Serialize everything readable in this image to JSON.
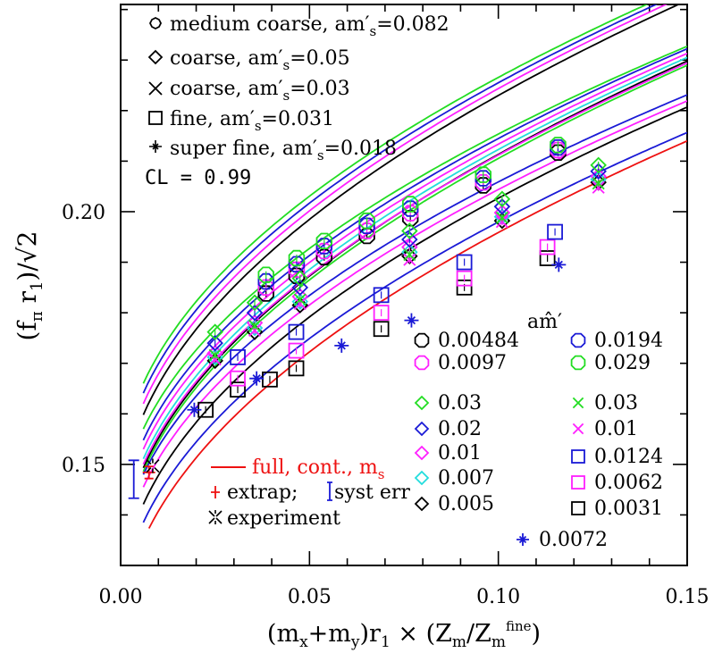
{
  "chart_data": {
    "type": "scatter",
    "xlim": [
      0.0,
      0.15
    ],
    "ylim": [
      0.13,
      0.241
    ],
    "xticks": [
      0.0,
      0.05,
      0.1,
      0.15
    ],
    "xtick_labels": [
      "0.00",
      "0.05",
      "0.10",
      "0.15"
    ],
    "yticks": [
      0.15,
      0.2
    ],
    "ytick_labels": [
      "0.15",
      "0.20"
    ],
    "grid": false,
    "xlabel": "(m_x+m_y)r_1 × (Z_m/Z_m^fine)",
    "ylabel": "(f_π r_1)/√2",
    "annotations": {
      "cl": "CL = 0.99",
      "ahat_header": "am̂′"
    },
    "ensemble_legend": [
      {
        "label": "medium coarse, am′s=0.082",
        "symbol": "octagon"
      },
      {
        "label": "coarse, am′s=0.05",
        "symbol": "diamond"
      },
      {
        "label": "coarse, am′s=0.03",
        "symbol": "x"
      },
      {
        "label": "fine, am′s=0.031",
        "symbol": "square"
      },
      {
        "label": "super fine, am′s=0.018",
        "symbol": "fancyplus"
      }
    ],
    "mass_legend": [
      {
        "label": "0.00484",
        "symbol": "octagon",
        "color": "#000000"
      },
      {
        "label": "0.0194",
        "symbol": "octagon",
        "color": "#1a1ad6"
      },
      {
        "label": "0.0097",
        "symbol": "octagon",
        "color": "#ff1fff"
      },
      {
        "label": "0.029",
        "symbol": "octagon",
        "color": "#22dd22"
      },
      {
        "label": "0.03",
        "symbol": "diamond",
        "color": "#22dd22"
      },
      {
        "label": "0.03",
        "symbol": "x",
        "color": "#22dd22"
      },
      {
        "label": "0.02",
        "symbol": "diamond",
        "color": "#1a1ad6"
      },
      {
        "label": "0.01",
        "symbol": "x",
        "color": "#ff1fff"
      },
      {
        "label": "0.01",
        "symbol": "diamond",
        "color": "#ff1fff"
      },
      {
        "label": "0.0124",
        "symbol": "square",
        "color": "#1a1ad6"
      },
      {
        "label": "0.007",
        "symbol": "diamond",
        "color": "#22dddd"
      },
      {
        "label": "0.0062",
        "symbol": "square",
        "color": "#ff1fff"
      },
      {
        "label": "0.005",
        "symbol": "diamond",
        "color": "#000000"
      },
      {
        "label": "0.0031",
        "symbol": "square",
        "color": "#000000"
      },
      {
        "label": "0.0072",
        "symbol": "fancyplus",
        "color": "#1a1ad6"
      }
    ],
    "extra_legend": [
      {
        "label": "full, cont., m_s",
        "symbol": "line",
        "color": "#ee1111"
      },
      {
        "label": "extrap; syst err",
        "symbol": "errbar",
        "color": "#ee1111"
      },
      {
        "label": "experiment",
        "symbol": "burst",
        "color": "#000000"
      }
    ],
    "extrapolation": {
      "x": 0.0075,
      "y": 0.1484,
      "yerr_stat": 0.0012,
      "yerr_syst": [
        0.1433,
        0.1508
      ]
    },
    "experiment": {
      "x": 0.0085,
      "y": 0.1497
    },
    "series": [
      {
        "ensemble": "medium coarse",
        "mass": "0.00484",
        "symbol": "octagon",
        "color": "#000000",
        "points": [
          [
            0.0385,
            0.1838
          ],
          [
            0.0466,
            0.1873
          ],
          [
            0.0539,
            0.191
          ],
          [
            0.0652,
            0.1952
          ],
          [
            0.0767,
            0.1987
          ],
          [
            0.096,
            0.2052
          ],
          [
            0.1158,
            0.2117
          ]
        ]
      },
      {
        "ensemble": "medium coarse",
        "mass": "0.0097",
        "symbol": "octagon",
        "color": "#ff1fff",
        "points": [
          [
            0.0385,
            0.185
          ],
          [
            0.0466,
            0.1885
          ],
          [
            0.0539,
            0.1922
          ],
          [
            0.0652,
            0.1962
          ],
          [
            0.0767,
            0.1997
          ],
          [
            0.096,
            0.2058
          ],
          [
            0.1158,
            0.2122
          ]
        ]
      },
      {
        "ensemble": "medium coarse",
        "mass": "0.0194",
        "symbol": "octagon",
        "color": "#1a1ad6",
        "points": [
          [
            0.0385,
            0.1862
          ],
          [
            0.0466,
            0.1896
          ],
          [
            0.0539,
            0.1932
          ],
          [
            0.0652,
            0.1972
          ],
          [
            0.0767,
            0.2006
          ],
          [
            0.096,
            0.2066
          ],
          [
            0.1158,
            0.2127
          ]
        ]
      },
      {
        "ensemble": "medium coarse",
        "mass": "0.029",
        "symbol": "octagon",
        "color": "#22dd22",
        "points": [
          [
            0.0385,
            0.1875
          ],
          [
            0.0466,
            0.1908
          ],
          [
            0.0539,
            0.1942
          ],
          [
            0.0652,
            0.1982
          ],
          [
            0.0767,
            0.2015
          ],
          [
            0.096,
            0.2073
          ],
          [
            0.1158,
            0.2132
          ]
        ]
      },
      {
        "ensemble": "coarse 0.05",
        "mass": "0.005",
        "symbol": "diamond",
        "color": "#000000",
        "points": [
          [
            0.025,
            0.1705
          ],
          [
            0.0355,
            0.1762
          ],
          [
            0.0475,
            0.1815
          ],
          [
            0.0765,
            0.1912
          ],
          [
            0.101,
            0.1982
          ],
          [
            0.1265,
            0.2058
          ]
        ]
      },
      {
        "ensemble": "coarse 0.05",
        "mass": "0.007",
        "symbol": "diamond",
        "color": "#22dddd",
        "points": [
          [
            0.025,
            0.1712
          ],
          [
            0.0355,
            0.177
          ],
          [
            0.0475,
            0.1822
          ],
          [
            0.0765,
            0.192
          ],
          [
            0.101,
            0.199
          ],
          [
            0.1265,
            0.2064
          ]
        ]
      },
      {
        "ensemble": "coarse 0.05",
        "mass": "0.01",
        "symbol": "diamond",
        "color": "#ff1fff",
        "points": [
          [
            0.025,
            0.172
          ],
          [
            0.0355,
            0.178
          ],
          [
            0.0475,
            0.1832
          ],
          [
            0.0765,
            0.193
          ],
          [
            0.101,
            0.1998
          ],
          [
            0.1265,
            0.207
          ]
        ]
      },
      {
        "ensemble": "coarse 0.05",
        "mass": "0.02",
        "symbol": "diamond",
        "color": "#1a1ad6",
        "points": [
          [
            0.025,
            0.174
          ],
          [
            0.0355,
            0.18
          ],
          [
            0.0475,
            0.185
          ],
          [
            0.0765,
            0.1945
          ],
          [
            0.101,
            0.201
          ],
          [
            0.1265,
            0.208
          ]
        ]
      },
      {
        "ensemble": "coarse 0.05",
        "mass": "0.03",
        "symbol": "diamond",
        "color": "#22dd22",
        "points": [
          [
            0.025,
            0.1762
          ],
          [
            0.0355,
            0.182
          ],
          [
            0.0475,
            0.1868
          ],
          [
            0.0765,
            0.1962
          ],
          [
            0.101,
            0.2025
          ],
          [
            0.1265,
            0.2092
          ]
        ]
      },
      {
        "ensemble": "coarse 0.03",
        "mass": "0.01",
        "symbol": "x",
        "color": "#ff1fff",
        "points": [
          [
            0.025,
            0.1708
          ],
          [
            0.0355,
            0.1765
          ],
          [
            0.0475,
            0.1818
          ],
          [
            0.0765,
            0.1905
          ],
          [
            0.101,
            0.198
          ],
          [
            0.1265,
            0.2048
          ]
        ]
      },
      {
        "ensemble": "coarse 0.03",
        "mass": "0.03",
        "symbol": "x",
        "color": "#22dd22",
        "points": [
          [
            0.025,
            0.1716
          ],
          [
            0.0355,
            0.1774
          ],
          [
            0.0475,
            0.1826
          ],
          [
            0.0765,
            0.1915
          ],
          [
            0.101,
            0.1988
          ],
          [
            0.1265,
            0.2056
          ]
        ]
      },
      {
        "ensemble": "fine",
        "mass": "0.0031",
        "symbol": "square",
        "color": "#000000",
        "points": [
          [
            0.0225,
            0.1608
          ],
          [
            0.031,
            0.1648
          ],
          [
            0.0395,
            0.1668
          ],
          [
            0.0465,
            0.169
          ],
          [
            0.069,
            0.1768
          ],
          [
            0.091,
            0.185
          ],
          [
            0.113,
            0.1908
          ]
        ]
      },
      {
        "ensemble": "fine",
        "mass": "0.0062",
        "symbol": "square",
        "color": "#ff1fff",
        "points": [
          [
            0.031,
            0.167
          ],
          [
            0.0465,
            0.1725
          ],
          [
            0.069,
            0.18
          ],
          [
            0.091,
            0.1868
          ],
          [
            0.113,
            0.193
          ]
        ]
      },
      {
        "ensemble": "fine",
        "mass": "0.0124",
        "symbol": "square",
        "color": "#1a1ad6",
        "points": [
          [
            0.031,
            0.1712
          ],
          [
            0.0465,
            0.1762
          ],
          [
            0.069,
            0.1835
          ],
          [
            0.091,
            0.19
          ],
          [
            0.115,
            0.196
          ]
        ]
      },
      {
        "ensemble": "super fine",
        "mass": "0.0072",
        "symbol": "fancyplus",
        "color": "#1a1ad6",
        "points": [
          [
            0.0195,
            0.1608
          ],
          [
            0.036,
            0.167
          ],
          [
            0.0585,
            0.1735
          ],
          [
            0.077,
            0.1785
          ],
          [
            0.116,
            0.1895
          ]
        ]
      }
    ],
    "fits": [
      {
        "color": "#22dd22",
        "a": 0.166,
        "b": 0.1153
      },
      {
        "color": "#1a1ad6",
        "a": 0.1641,
        "b": 0.1169
      },
      {
        "color": "#ff1fff",
        "a": 0.162,
        "b": 0.1187
      },
      {
        "color": "#000000",
        "a": 0.1598,
        "b": 0.1203
      },
      {
        "color": "#22dd22",
        "a": 0.157,
        "b": 0.1111
      },
      {
        "color": "#1a1ad6",
        "a": 0.1548,
        "b": 0.1136
      },
      {
        "color": "#ff1fff",
        "a": 0.153,
        "b": 0.1149
      },
      {
        "color": "#22dddd",
        "a": 0.1511,
        "b": 0.1165
      },
      {
        "color": "#000000",
        "a": 0.1493,
        "b": 0.1181
      },
      {
        "color": "#ff1fff",
        "a": 0.15,
        "b": 0.1165
      },
      {
        "color": "#22dd22",
        "a": 0.1486,
        "b": 0.1179
      },
      {
        "color": "#1a1ad6",
        "a": 0.148,
        "b": 0.1102
      },
      {
        "color": "#ff1fff",
        "a": 0.1455,
        "b": 0.1121
      },
      {
        "color": "#000000",
        "a": 0.1421,
        "b": 0.1153
      },
      {
        "color": "#1a1ad6",
        "a": 0.1385,
        "b": 0.1132
      },
      {
        "color": "#ee1111",
        "a": 0.135,
        "b": 0.1159
      }
    ]
  }
}
